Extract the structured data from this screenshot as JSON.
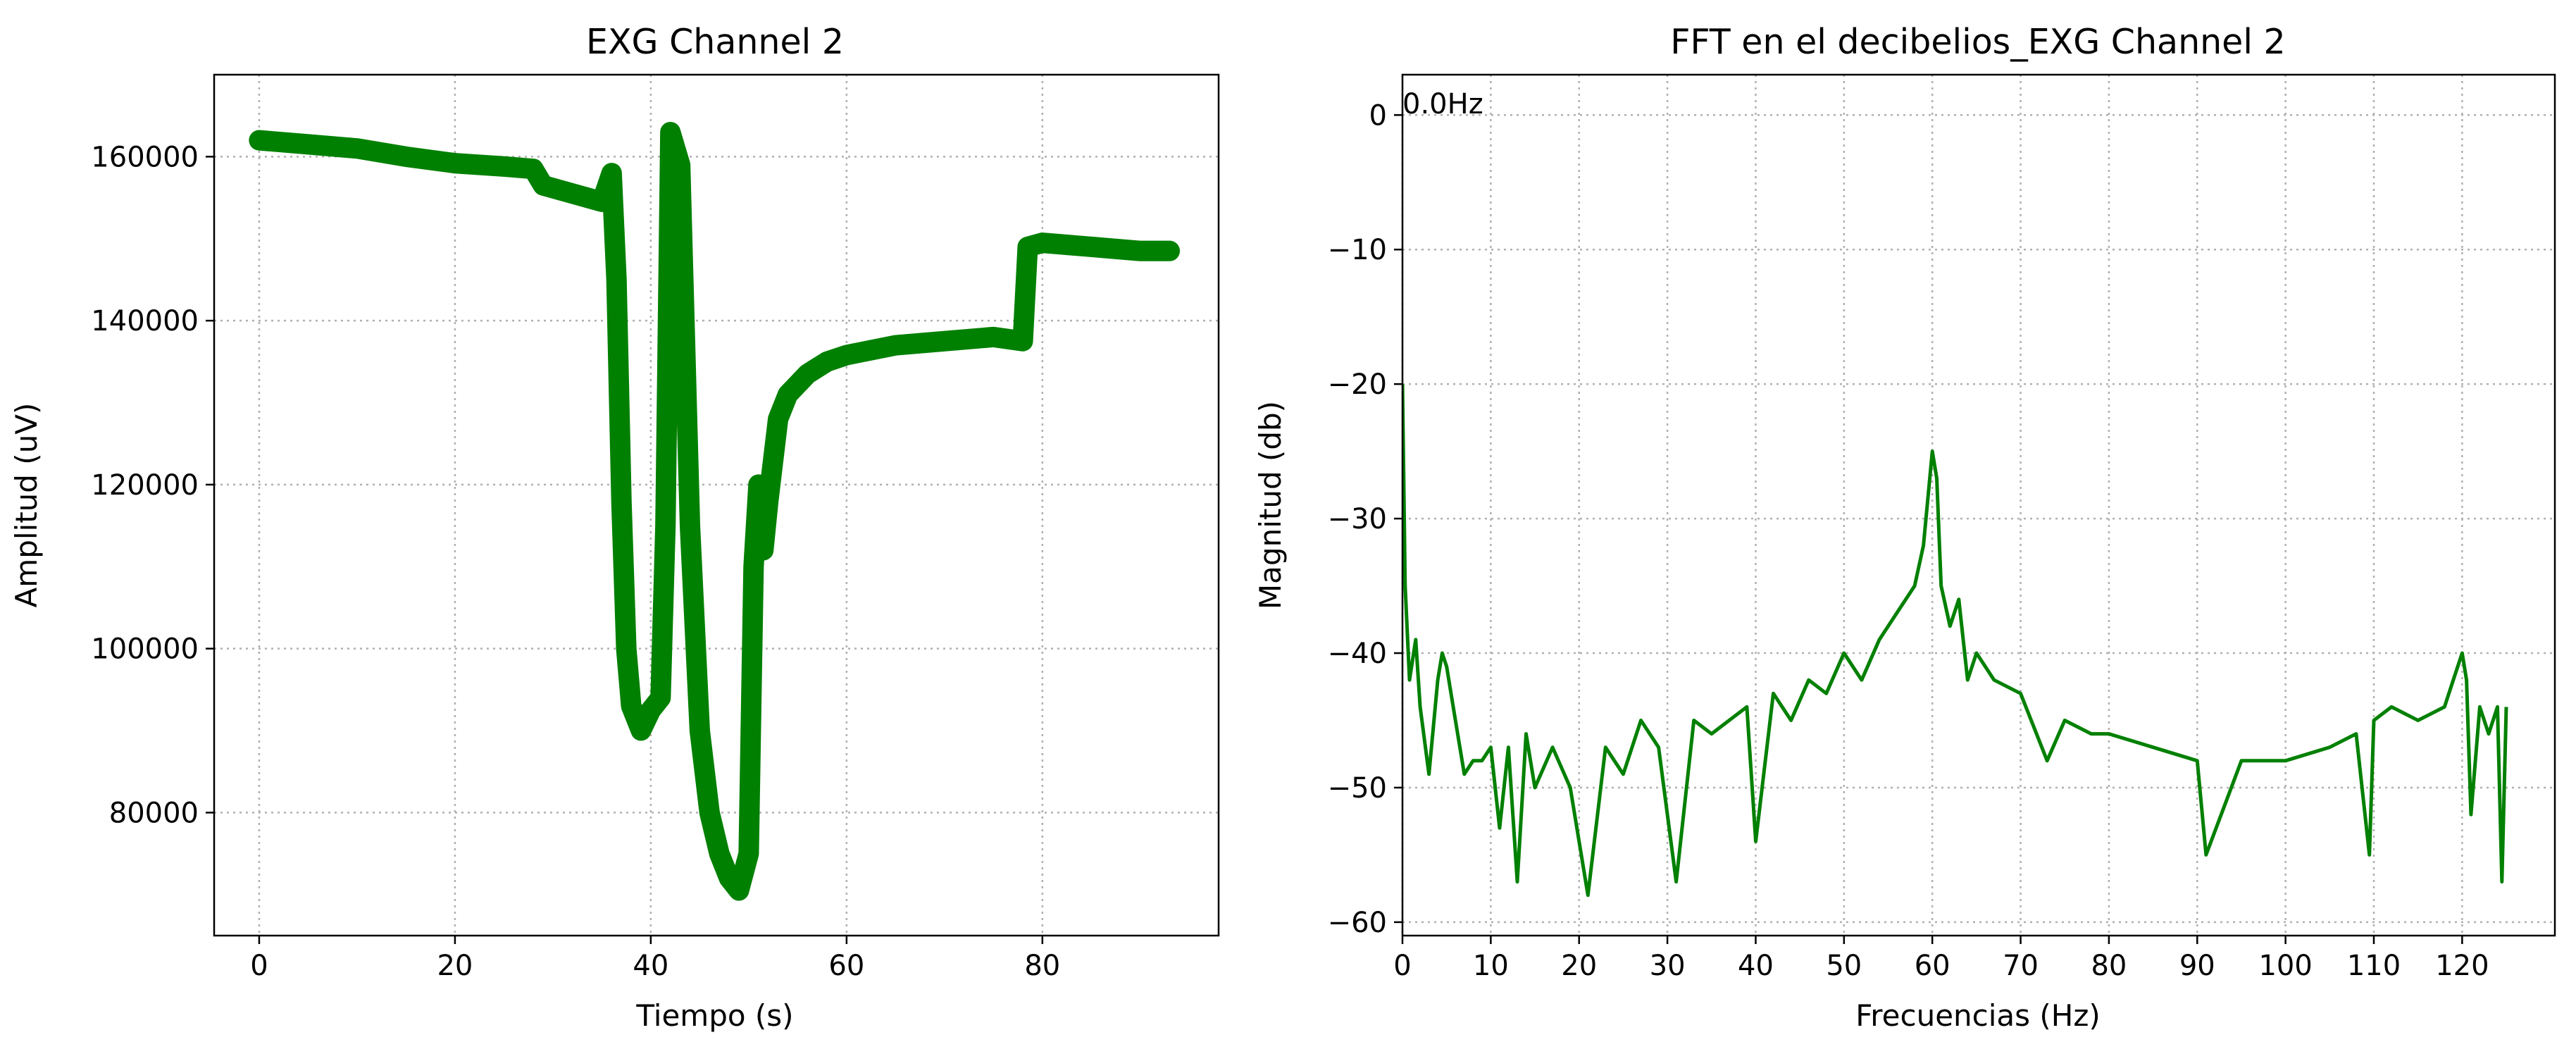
{
  "chart_data": [
    {
      "type": "line",
      "title": "EXG Channel 2",
      "xlabel": "Tiempo (s)",
      "ylabel": "Amplitud (uV)",
      "xlim": [
        -4.6,
        98.0
      ],
      "ylim": [
        65000,
        170000
      ],
      "xticks": [
        0,
        20,
        40,
        60,
        80
      ],
      "xtick_labels": [
        "0",
        "20",
        "40",
        "60",
        "80"
      ],
      "yticks": [
        80000,
        100000,
        120000,
        140000,
        160000
      ],
      "ytick_labels": [
        "80000",
        "100000",
        "120000",
        "140000",
        "160000"
      ],
      "grid": true,
      "color": "#008000",
      "series": [
        {
          "noise_band": 2500,
          "x": [
            0,
            5,
            10,
            15,
            20,
            25,
            28,
            29,
            32,
            35,
            36,
            36.5,
            37,
            37.5,
            38,
            39,
            40,
            41,
            41.5,
            42,
            42.5,
            43,
            44,
            45,
            46,
            47,
            48,
            49,
            50,
            50.5,
            51,
            51.5,
            52,
            53,
            54,
            56,
            58,
            60,
            65,
            70,
            75,
            78,
            78.5,
            80,
            85,
            90,
            93
          ],
          "y": [
            162000,
            161500,
            161000,
            160000,
            159200,
            158800,
            158500,
            156500,
            155500,
            154500,
            158000,
            145000,
            118000,
            100000,
            93000,
            90000,
            92500,
            94000,
            115000,
            163000,
            161000,
            159000,
            115000,
            90000,
            80000,
            75000,
            72000,
            70500,
            75000,
            110000,
            120000,
            112000,
            118000,
            128000,
            131000,
            133500,
            135000,
            135800,
            137000,
            137500,
            138000,
            137500,
            149000,
            149500,
            149000,
            148500,
            148500
          ]
        }
      ]
    },
    {
      "type": "line",
      "title": "FFT en el decibelios_EXG Channel 2",
      "xlabel": "Frecuencias (Hz)",
      "ylabel": "Magnitud (db)",
      "xlim": [
        0,
        130.5
      ],
      "ylim": [
        -61,
        3
      ],
      "xticks": [
        0,
        10,
        20,
        30,
        40,
        50,
        60,
        70,
        80,
        90,
        100,
        110,
        120
      ],
      "xtick_labels": [
        "0",
        "10",
        "20",
        "30",
        "40",
        "50",
        "60",
        "70",
        "80",
        "90",
        "100",
        "110",
        "120"
      ],
      "yticks": [
        0,
        -10,
        -20,
        -30,
        -40,
        -50,
        -60
      ],
      "ytick_labels": [
        "0",
        "−10",
        "−20",
        "−30",
        "−40",
        "−50",
        "−60"
      ],
      "grid": true,
      "color": "#008000",
      "annotation": "0.0Hz",
      "series": [
        {
          "x": [
            0,
            0.3,
            0.8,
            1.5,
            2,
            3,
            4,
            4.5,
            5,
            6,
            6.5,
            7,
            8,
            9,
            10,
            11,
            12,
            13,
            14,
            15,
            17,
            19,
            21,
            23,
            25,
            27,
            29,
            31,
            33,
            35,
            37,
            39,
            40,
            42,
            44,
            46,
            48,
            50,
            52,
            54,
            56,
            58,
            59,
            60,
            60.5,
            61,
            62,
            63,
            64,
            65,
            67,
            70,
            73,
            75,
            78,
            80,
            85,
            90,
            91,
            95,
            100,
            105,
            108,
            109.5,
            110,
            112,
            115,
            118,
            119,
            120,
            120.5,
            121,
            122,
            123,
            124,
            124.5,
            125
          ],
          "y": [
            -20,
            -35,
            -42,
            -39,
            -44,
            -49,
            -42,
            -40,
            -41,
            -45,
            -47,
            -49,
            -48,
            -48,
            -47,
            -53,
            -47,
            -57,
            -46,
            -50,
            -47,
            -50,
            -58,
            -47,
            -49,
            -45,
            -47,
            -57,
            -45,
            -46,
            -45,
            -44,
            -54,
            -43,
            -45,
            -42,
            -43,
            -40,
            -42,
            -39,
            -37,
            -35,
            -32,
            -25,
            -27,
            -35,
            -38,
            -36,
            -42,
            -40,
            -42,
            -43,
            -48,
            -45,
            -46,
            -46,
            -47,
            -48,
            -55,
            -48,
            -48,
            -47,
            -46,
            -55,
            -45,
            -44,
            -45,
            -44,
            -42,
            -40,
            -42,
            -52,
            -44,
            -46,
            -44,
            -57,
            -44
          ]
        }
      ]
    }
  ]
}
